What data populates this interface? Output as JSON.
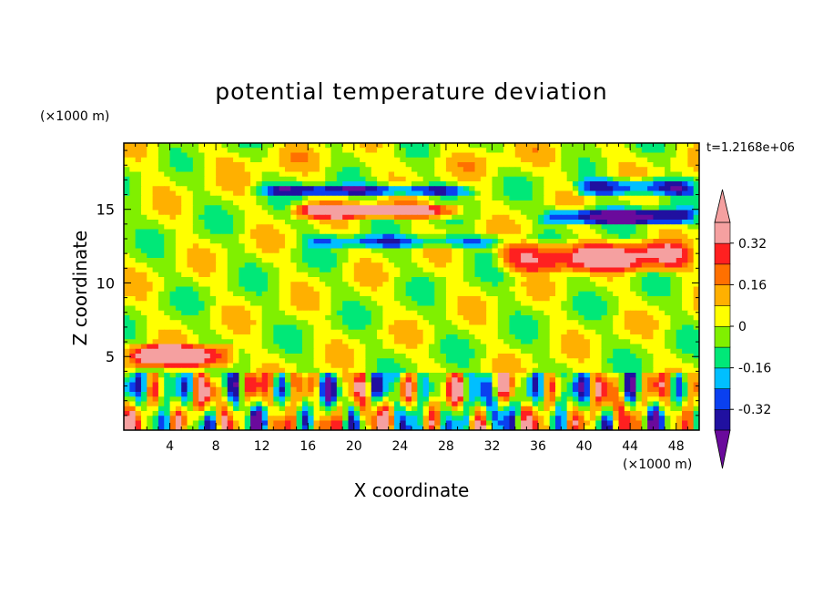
{
  "chart_data": {
    "type": "heatmap",
    "title": "potential temperature deviation",
    "xlabel": "X coordinate",
    "ylabel": "Z coordinate",
    "x_unit_label": "(×1000 m)",
    "y_unit_label": "(×1000 m)",
    "time_label": "t=1.2168e+06",
    "xlim": [
      0,
      50
    ],
    "ylim": [
      0,
      19.5
    ],
    "x_ticks": [
      4,
      8,
      12,
      16,
      20,
      24,
      28,
      32,
      36,
      40,
      44,
      48
    ],
    "x_tick_labels": [
      "4",
      "8",
      "12",
      "16",
      "20",
      "24",
      "28",
      "32",
      "36",
      "40",
      "44",
      "48"
    ],
    "y_ticks": [
      5,
      10,
      15
    ],
    "y_tick_labels": [
      "5",
      "10",
      "15"
    ],
    "colorbar": {
      "levels": [
        -0.4,
        -0.32,
        -0.24,
        -0.16,
        -0.08,
        0,
        0.08,
        0.16,
        0.24,
        0.32,
        0.4
      ],
      "tick_values": [
        0.32,
        0.16,
        0,
        -0.16,
        -0.32
      ],
      "tick_labels": [
        "0.32",
        "0.16",
        "0",
        "-0.16",
        "-0.32"
      ],
      "colors": [
        "#6a0a9c",
        "#2010a0",
        "#0a40f0",
        "#00bfff",
        "#00e878",
        "#80f000",
        "#ffff00",
        "#ffb000",
        "#ff7000",
        "#ff2020",
        "#f5a0a0"
      ]
    },
    "bands": [
      {
        "z_range": [
          17,
          19.5
        ],
        "value": 0.04
      },
      {
        "z_range": [
          15.8,
          16.8
        ],
        "value": -0.35,
        "x_range": [
          11,
          31
        ]
      },
      {
        "z_range": [
          15.8,
          17.2
        ],
        "value": -0.36,
        "x_range": [
          39,
          50
        ]
      },
      {
        "z_range": [
          14.3,
          15.5
        ],
        "value": 0.42,
        "x_range": [
          14,
          30
        ]
      },
      {
        "z_range": [
          13.8,
          15.2
        ],
        "value": -0.42,
        "x_range": [
          36,
          50
        ]
      },
      {
        "z_range": [
          12.3,
          13.3
        ],
        "value": -0.24,
        "x_range": [
          15,
          35
        ]
      },
      {
        "z_range": [
          10.5,
          13
        ],
        "value": 0.36,
        "x_range": [
          32,
          50
        ]
      },
      {
        "z_range": [
          4,
          6
        ],
        "value": 0.42,
        "x_range": [
          0,
          10
        ]
      },
      {
        "z_range": [
          0,
          4
        ],
        "value": 0.0,
        "x_range": [
          0,
          50
        ]
      }
    ]
  }
}
